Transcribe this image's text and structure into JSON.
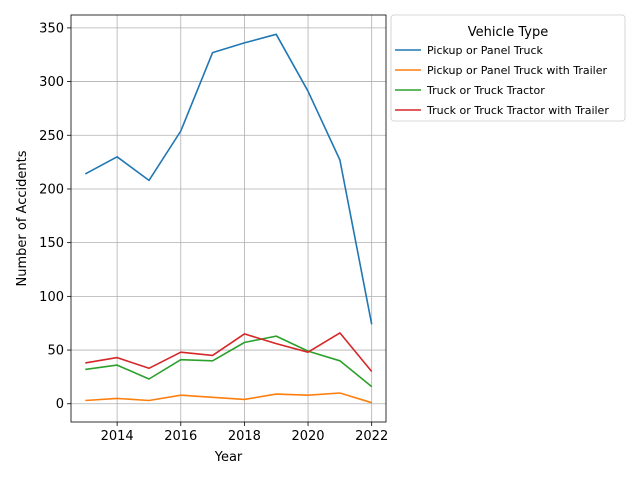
{
  "chart_data": {
    "type": "line",
    "title": "",
    "xlabel": "Year",
    "ylabel": "Number of Accidents",
    "x": [
      2013,
      2014,
      2015,
      2016,
      2017,
      2018,
      2019,
      2020,
      2021,
      2022
    ],
    "xlim": [
      2012.55,
      2022.45
    ],
    "ylim": [
      -17,
      362
    ],
    "xticks": [
      2014,
      2016,
      2018,
      2020,
      2022
    ],
    "yticks": [
      0,
      50,
      100,
      150,
      200,
      250,
      300,
      350
    ],
    "xtick_labels": [
      "2014",
      "2016",
      "2018",
      "2020",
      "2022"
    ],
    "ytick_labels": [
      "0",
      "50",
      "100",
      "150",
      "200",
      "250",
      "300",
      "350"
    ],
    "grid": true,
    "legend": {
      "title": "Vehicle Type",
      "placement": "outside-right"
    },
    "series": [
      {
        "name": "Pickup or Panel Truck",
        "color": "#1f77b4",
        "values": [
          214,
          230,
          208,
          254,
          327,
          336,
          344,
          291,
          227,
          74
        ]
      },
      {
        "name": "Pickup or Panel Truck with Trailer",
        "color": "#ff7f0e",
        "values": [
          3,
          5,
          3,
          8,
          6,
          4,
          9,
          8,
          10,
          1
        ]
      },
      {
        "name": "Truck or Truck Tractor",
        "color": "#2ca02c",
        "values": [
          32,
          36,
          23,
          41,
          40,
          57,
          63,
          49,
          40,
          16
        ]
      },
      {
        "name": "Truck or Truck Tractor with Trailer",
        "color": "#d62728",
        "values": [
          38,
          43,
          33,
          48,
          45,
          65,
          56,
          48,
          66,
          30
        ]
      }
    ]
  }
}
